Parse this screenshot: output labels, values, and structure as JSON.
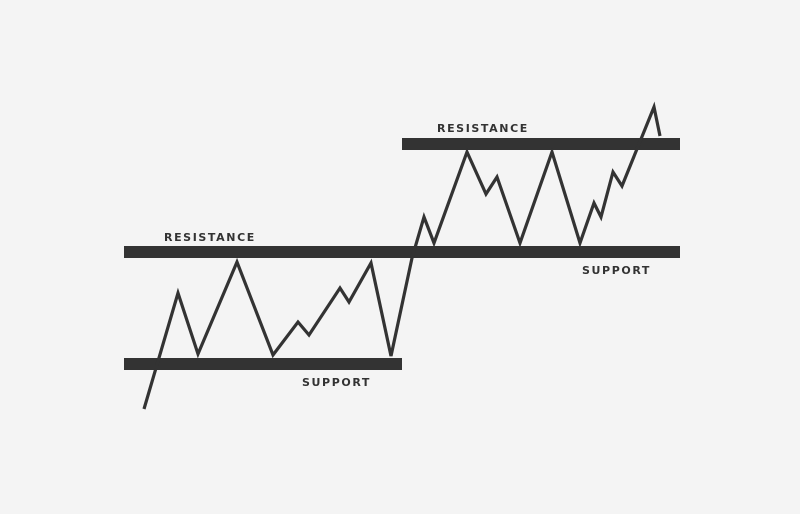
{
  "diagram": {
    "colors": {
      "background": "#f4f4f4",
      "ink": "#333333"
    },
    "levels": [
      {
        "id": "resistance-upper",
        "label": "RESISTANCE"
      },
      {
        "id": "resistance-lower",
        "label": "RESISTANCE"
      },
      {
        "id": "support-upper",
        "label": "SUPPORT"
      },
      {
        "id": "support-lower",
        "label": "SUPPORT"
      }
    ]
  }
}
